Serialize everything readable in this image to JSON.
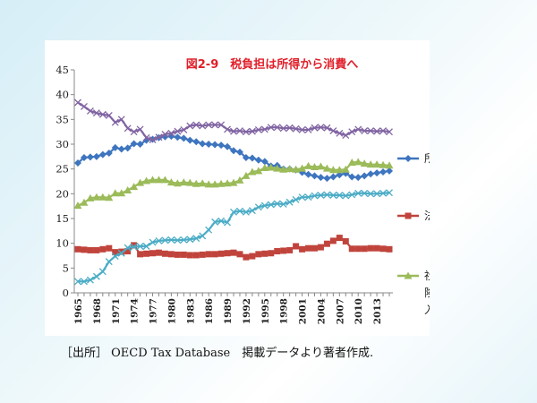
{
  "chart_data": {
    "type": "line",
    "title": "図2-9　税負担は所得から消費へ",
    "title_color": "#e0202a",
    "xlabel": "",
    "ylabel": "",
    "ylim": [
      0,
      45
    ],
    "yticks": [
      0,
      5,
      10,
      15,
      20,
      25,
      30,
      35,
      40,
      45
    ],
    "x": [
      1965,
      1966,
      1967,
      1968,
      1969,
      1970,
      1971,
      1972,
      1973,
      1974,
      1975,
      1976,
      1977,
      1978,
      1979,
      1980,
      1981,
      1982,
      1983,
      1984,
      1985,
      1986,
      1987,
      1988,
      1989,
      1990,
      1991,
      1992,
      1993,
      1994,
      1995,
      1996,
      1997,
      1998,
      1999,
      2000,
      2001,
      2002,
      2003,
      2004,
      2005,
      2006,
      2007,
      2008,
      2009,
      2010,
      2011,
      2012,
      2013,
      2014,
      2015
    ],
    "xtick_labels": [
      "1965",
      "1968",
      "1971",
      "1974",
      "1977",
      "1980",
      "1983",
      "1986",
      "1989",
      "1992",
      "1995",
      "1998",
      "2001",
      "2004",
      "2007",
      "2010",
      "2013"
    ],
    "grid": false,
    "legend_position": "right",
    "series": [
      {
        "name": "所得税",
        "color": "#3e75bf",
        "marker": "diamond",
        "values": [
          26.2,
          27.3,
          27.4,
          27.5,
          27.9,
          28.2,
          29.3,
          29.0,
          29.2,
          30.1,
          30.0,
          30.8,
          31.0,
          31.3,
          31.5,
          31.6,
          31.4,
          31.2,
          30.8,
          30.5,
          30.1,
          30.0,
          29.9,
          29.8,
          29.5,
          28.7,
          28.4,
          27.3,
          27.2,
          26.8,
          26.5,
          25.6,
          25.7,
          25.0,
          25.0,
          24.8,
          24.3,
          23.9,
          23.6,
          23.3,
          23.1,
          23.4,
          23.8,
          24.1,
          23.4,
          23.3,
          23.6,
          24.0,
          24.2,
          24.4,
          24.6
        ]
      },
      {
        "name": "法人税",
        "color": "#c0443c",
        "marker": "square",
        "values": [
          8.8,
          8.7,
          8.6,
          8.6,
          8.8,
          9.0,
          8.2,
          8.3,
          8.4,
          9.6,
          7.8,
          7.9,
          8.0,
          8.1,
          7.9,
          7.8,
          7.7,
          7.7,
          7.6,
          7.6,
          7.7,
          7.8,
          7.8,
          7.9,
          8.0,
          8.1,
          7.8,
          7.2,
          7.4,
          7.8,
          7.9,
          8.0,
          8.4,
          8.5,
          8.6,
          9.4,
          8.8,
          9.0,
          9.0,
          9.2,
          9.9,
          10.5,
          11.1,
          10.4,
          8.9,
          8.9,
          8.9,
          9.0,
          9.0,
          8.9,
          8.8
        ]
      },
      {
        "name": "社会保険料収入",
        "color": "#9bbb59",
        "marker": "triangle",
        "values": [
          17.6,
          18.2,
          19.1,
          19.3,
          19.3,
          19.2,
          20.1,
          20.1,
          20.7,
          21.4,
          22.2,
          22.6,
          22.8,
          22.8,
          22.8,
          22.3,
          22.1,
          22.3,
          22.2,
          22.0,
          22.1,
          21.9,
          21.9,
          22.0,
          22.1,
          22.2,
          22.7,
          23.6,
          24.4,
          24.6,
          25.2,
          25.3,
          25.1,
          24.9,
          25.0,
          24.9,
          25.1,
          25.6,
          25.4,
          25.5,
          25.1,
          24.8,
          24.8,
          24.9,
          26.3,
          26.4,
          26.1,
          25.9,
          25.9,
          25.8,
          25.7
        ]
      },
      {
        "name": "",
        "color": "#4bacc6",
        "marker": "x",
        "values": [
          2.3,
          2.3,
          2.6,
          3.3,
          4.3,
          6.3,
          7.4,
          8.0,
          9.1,
          9.3,
          9.4,
          9.4,
          10.2,
          10.5,
          10.6,
          10.7,
          10.6,
          10.7,
          10.8,
          11.0,
          11.5,
          12.7,
          14.3,
          14.5,
          14.2,
          16.3,
          16.5,
          16.3,
          16.6,
          17.3,
          17.6,
          17.8,
          18.0,
          17.9,
          18.3,
          18.8,
          19.3,
          19.3,
          19.6,
          19.7,
          19.8,
          19.7,
          19.7,
          19.6,
          19.8,
          20.1,
          20.1,
          20.0,
          20.0,
          20.1,
          20.2
        ]
      },
      {
        "name": "",
        "color": "#8064a2",
        "marker": "x",
        "values": [
          38.4,
          37.6,
          36.7,
          36.3,
          36.0,
          35.8,
          34.4,
          35.0,
          33.2,
          32.5,
          33.0,
          31.3,
          30.9,
          31.4,
          32.0,
          32.2,
          32.6,
          32.9,
          33.7,
          33.9,
          33.7,
          33.9,
          33.9,
          33.9,
          33.0,
          32.6,
          32.7,
          32.5,
          32.6,
          32.9,
          33.0,
          33.4,
          33.4,
          33.2,
          33.3,
          33.1,
          32.9,
          32.9,
          33.3,
          33.4,
          33.3,
          32.7,
          32.2,
          31.8,
          32.5,
          33.0,
          32.7,
          32.7,
          32.6,
          32.7,
          32.5
        ]
      }
    ]
  },
  "footer": {
    "source_note": "［出所］ OECD Tax Database　掲載データより著者作成."
  }
}
